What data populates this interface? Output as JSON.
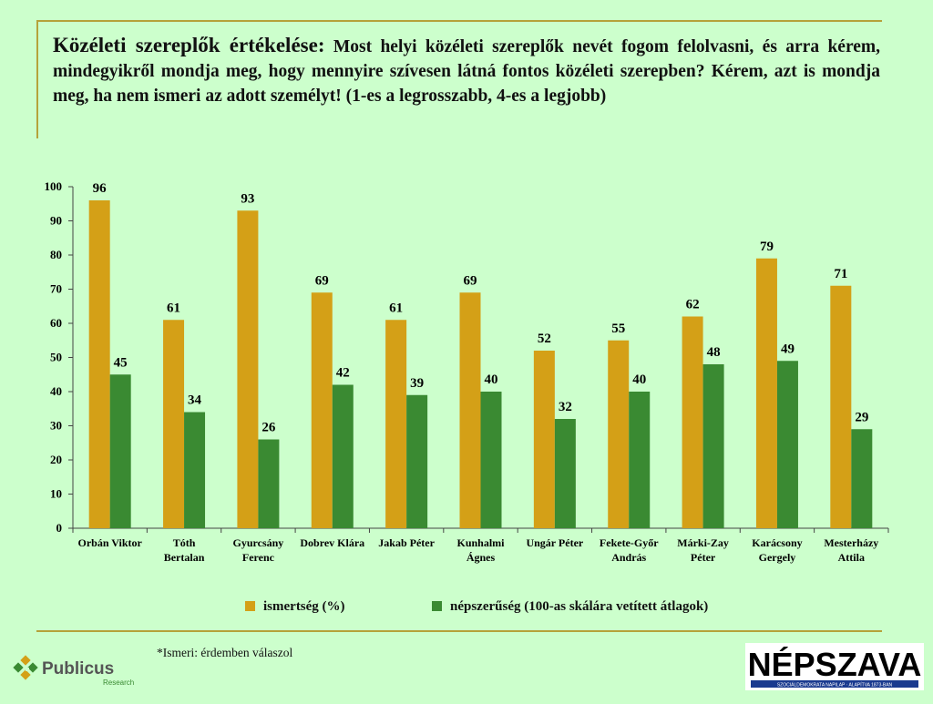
{
  "title": {
    "lead": "Közéleti szereplők értékelése:",
    "body": "Most helyi közéleti szereplők nevét fogom felolvasni, és arra kérem, mindegyikről mondja meg, hogy mennyire szívesen látná fontos közéleti szerepben? Kérem, azt is mondja meg, ha nem ismeri az adott személyt!  (1-es a legrosszabb, 4-es a legjobb)"
  },
  "chart_data": {
    "type": "bar",
    "categories": [
      [
        "Orbán Viktor"
      ],
      [
        "Tóth",
        "Bertalan"
      ],
      [
        "Gyurcsány",
        "Ferenc"
      ],
      [
        "Dobrev Klára"
      ],
      [
        "Jakab Péter"
      ],
      [
        "Kunhalmi",
        "Ágnes"
      ],
      [
        "Ungár Péter"
      ],
      [
        "Fekete-Győr",
        "András"
      ],
      [
        "Márki-Zay",
        "Péter"
      ],
      [
        "Karácsony",
        "Gergely"
      ],
      [
        "Mesterházy",
        "Attila"
      ]
    ],
    "series": [
      {
        "name": "ismertség (%)",
        "color": "#d4a017",
        "values": [
          96,
          61,
          93,
          69,
          61,
          69,
          52,
          55,
          62,
          79,
          71
        ]
      },
      {
        "name": "népszerűség (100-as skálára vetített átlagok)",
        "color": "#3a8a32",
        "values": [
          45,
          34,
          26,
          42,
          39,
          40,
          32,
          40,
          48,
          49,
          29
        ]
      }
    ],
    "ylim": [
      0,
      100
    ],
    "yticks": [
      0,
      10,
      20,
      30,
      40,
      50,
      60,
      70,
      80,
      90,
      100
    ],
    "grid": false,
    "legend_position": "bottom"
  },
  "footnote": "*Ismeri: érdemben válaszol",
  "logos": {
    "publicus": {
      "name": "Publicus",
      "sub": "Research"
    },
    "nepszava": {
      "name": "NÉPSZAVA",
      "tagline": "SZOCIÁLDEMOKRATA NAPILAP · ALAPÍTVA 1873-BAN"
    }
  }
}
